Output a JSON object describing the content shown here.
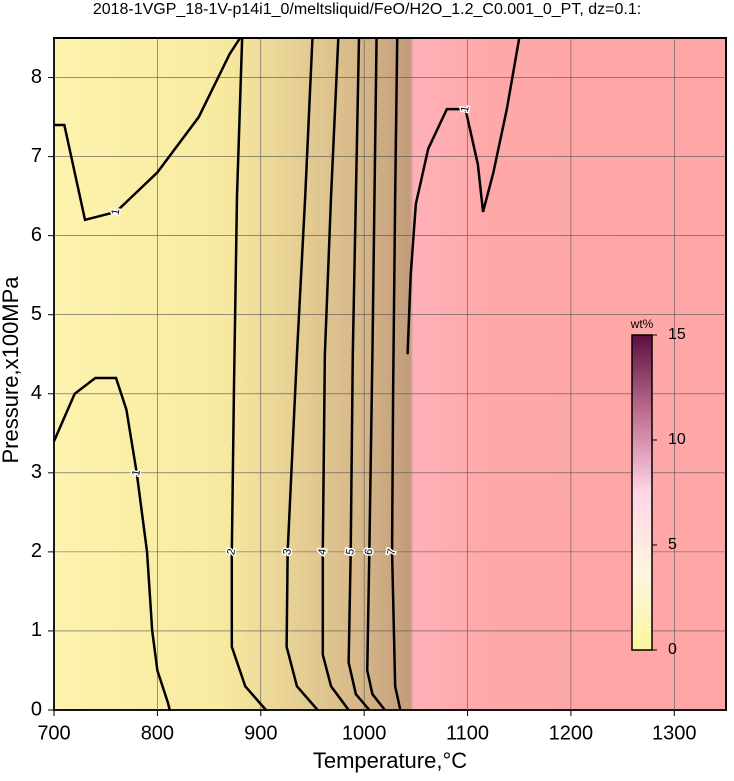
{
  "chart_data": {
    "type": "contour",
    "title": "2018-1VGP_18-1V-p14i1_0/meltsliquid/FeO/H2O_1.2_C0.001_0_PT, dz=0.1:",
    "x_label": "Temperature,°C",
    "y_label": "Pressure,x100MPa",
    "xlim": [
      700,
      1350
    ],
    "ylim": [
      0,
      8.5
    ],
    "xticks": [
      700,
      800,
      900,
      1000,
      1100,
      1200,
      1300
    ],
    "yticks": [
      0,
      1,
      2,
      3,
      4,
      5,
      6,
      7,
      8
    ],
    "grid": true,
    "contours": [
      {
        "level": "1",
        "x": [
          700,
          710,
          720,
          730,
          760,
          800,
          840,
          870,
          880
        ],
        "y": [
          7.4,
          7.4,
          6.8,
          6.2,
          6.3,
          6.8,
          7.5,
          8.3,
          8.5
        ]
      },
      {
        "level": "1",
        "x": [
          700,
          720,
          740,
          760,
          770,
          780,
          790,
          795,
          800,
          810,
          812
        ],
        "y": [
          3.4,
          4.0,
          4.2,
          4.2,
          3.8,
          3.0,
          2.0,
          1.0,
          0.5,
          0.1,
          0
        ]
      },
      {
        "level": "1",
        "x": [
          1150,
          1138,
          1125,
          1115,
          1110,
          1098,
          1080,
          1062,
          1050,
          1045,
          1042
        ],
        "y": [
          8.5,
          7.6,
          6.8,
          6.3,
          6.9,
          7.6,
          7.6,
          7.1,
          6.4,
          5.5,
          4.5
        ]
      },
      {
        "level": "2",
        "x": [
          882,
          877,
          874,
          872,
          872,
          885,
          905
        ],
        "y": [
          8.5,
          6.5,
          4.0,
          2.0,
          0.8,
          0.3,
          0
        ]
      },
      {
        "level": "3",
        "x": [
          950,
          943,
          935,
          926,
          925,
          935,
          955
        ],
        "y": [
          8.5,
          6.5,
          4.5,
          2.0,
          0.8,
          0.3,
          0
        ]
      },
      {
        "level": "4",
        "x": [
          975,
          968,
          962,
          960,
          960,
          968,
          985
        ],
        "y": [
          8.5,
          6.5,
          4.5,
          2.0,
          0.7,
          0.3,
          0
        ]
      },
      {
        "level": "5",
        "x": [
          995,
          992,
          989,
          987,
          985,
          992,
          1005
        ],
        "y": [
          8.5,
          6.5,
          4.5,
          2.0,
          0.6,
          0.2,
          0
        ]
      },
      {
        "level": "6",
        "x": [
          1012,
          1010,
          1008,
          1005,
          1003,
          1008,
          1020
        ],
        "y": [
          8.5,
          6.5,
          4.5,
          2.0,
          0.5,
          0.2,
          0
        ]
      },
      {
        "level": "7",
        "x": [
          1032,
          1030,
          1028,
          1027,
          1030,
          1035
        ],
        "y": [
          8.5,
          6.5,
          4.0,
          2.0,
          0.3,
          0
        ]
      }
    ],
    "colorbar": {
      "label": "wt%",
      "lim": [
        0,
        15
      ],
      "ticks": [
        0,
        5,
        10,
        15
      ],
      "colors": [
        "#fbf6a0",
        "#fff4e0",
        "#ffd6e6",
        "#c07090",
        "#5a1040"
      ]
    }
  }
}
